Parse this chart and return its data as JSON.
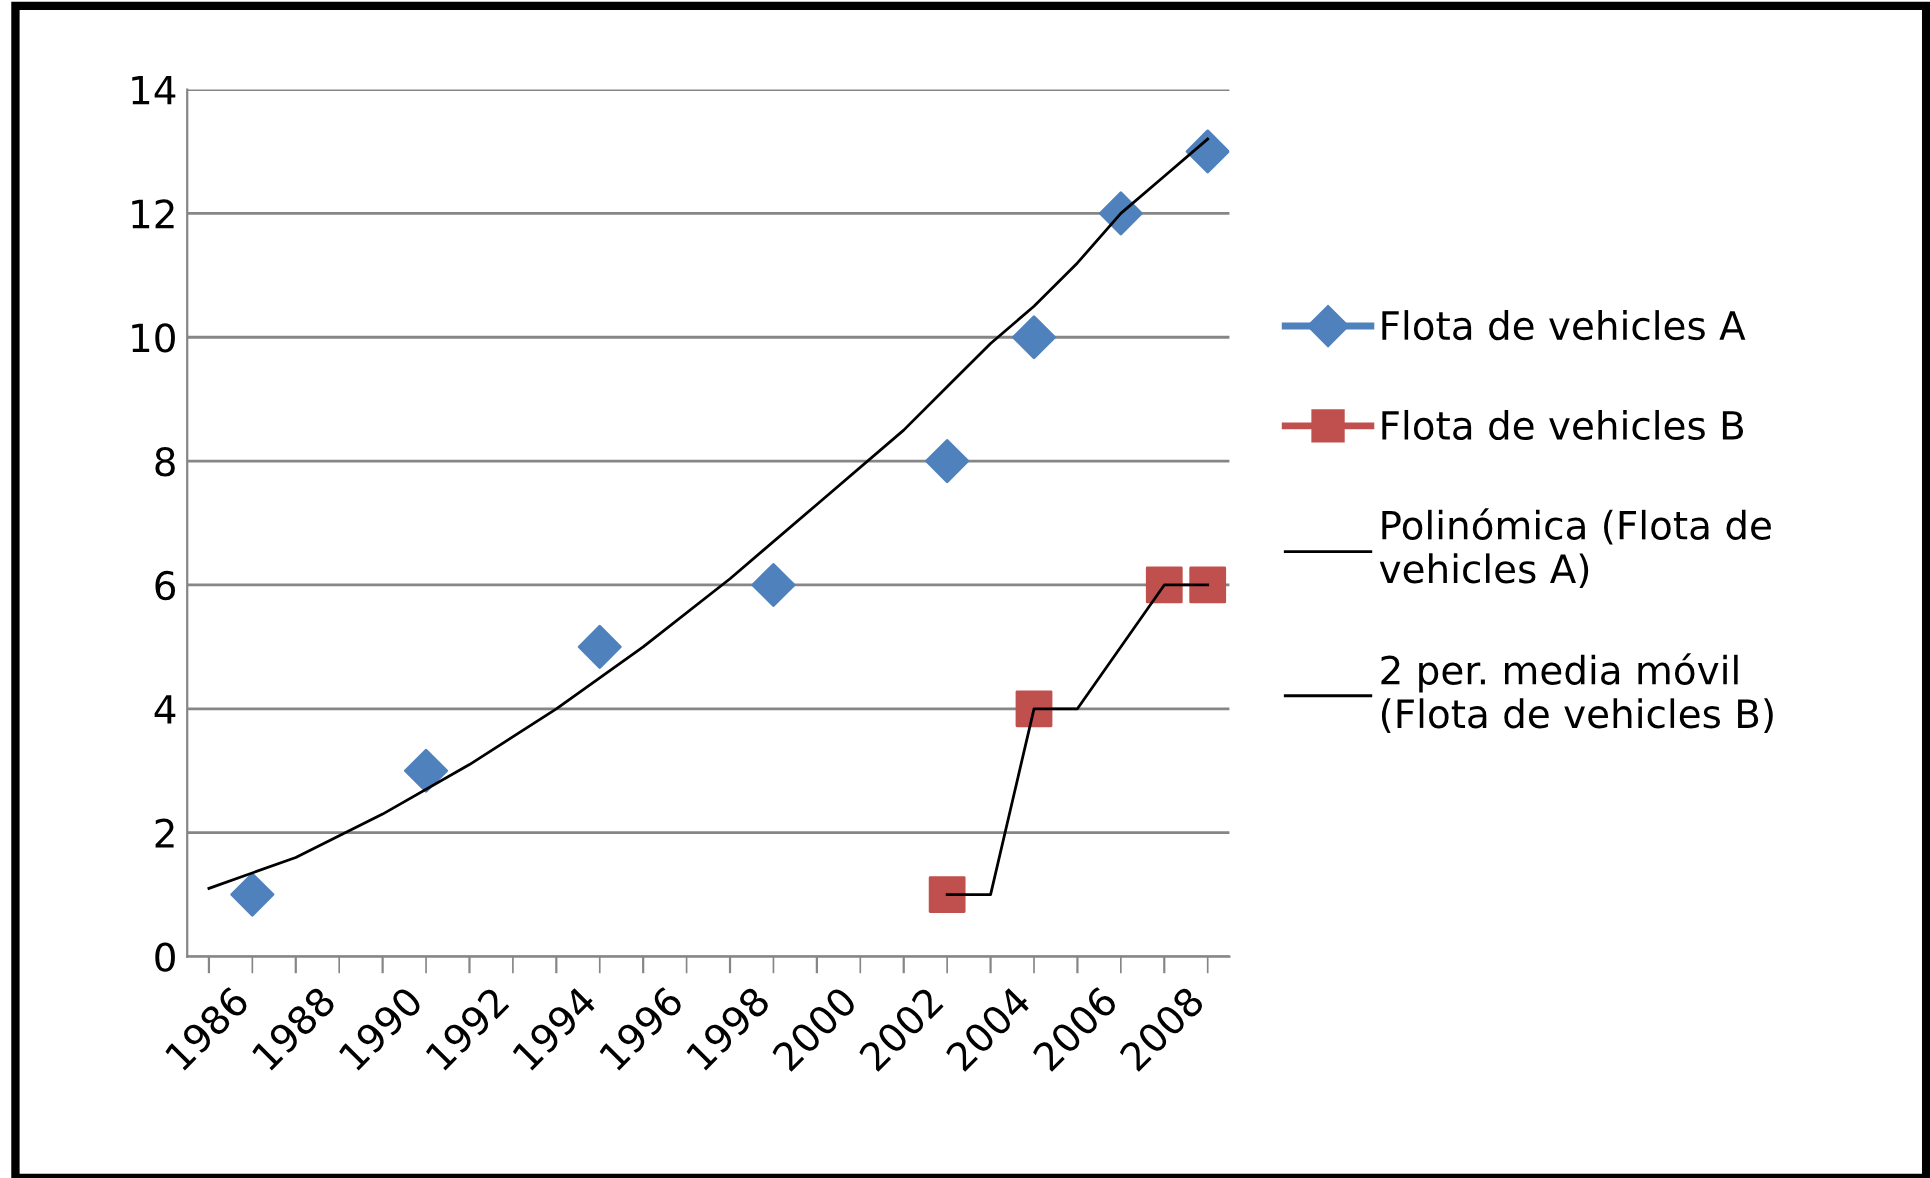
{
  "chart_data": {
    "type": "scatter",
    "xlim": [
      1985.5,
      2009.5
    ],
    "xticks": [
      1986,
      1988,
      1990,
      1992,
      1994,
      1996,
      1998,
      2000,
      2002,
      2004,
      2006,
      2008
    ],
    "ylim": [
      0,
      14
    ],
    "yticks": [
      0,
      2,
      4,
      6,
      8,
      10,
      12,
      14
    ],
    "grid": "y",
    "legend": "right",
    "series": [
      {
        "name": "Flota de vehicles A",
        "type": "scatter",
        "marker": "diamond",
        "color": "#4f81bd",
        "x": [
          1987,
          1991,
          1995,
          1999,
          2003,
          2005,
          2007,
          2009
        ],
        "values": [
          1,
          3,
          5,
          6,
          8,
          10,
          12,
          13
        ]
      },
      {
        "name": "Flota de vehicles B",
        "type": "scatter",
        "marker": "square",
        "color": "#c0504d",
        "x": [
          2003,
          2005,
          2008,
          2009
        ],
        "values": [
          1,
          4,
          6,
          6
        ]
      },
      {
        "name": "Polinómica (Flota de\nvehicles A)",
        "type": "line",
        "marker": "none",
        "color": "#000000",
        "x": [
          1986,
          1988,
          1990,
          1992,
          1994,
          1996,
          1998,
          2000,
          2002,
          2003,
          2004,
          2005,
          2006,
          2007,
          2008,
          2009
        ],
        "values": [
          1.1,
          1.6,
          2.3,
          3.1,
          4.0,
          5.0,
          6.1,
          7.3,
          8.5,
          9.2,
          9.9,
          10.5,
          11.2,
          12.0,
          12.6,
          13.2
        ]
      },
      {
        "name": "2 per. media móvil\n(Flota de vehicles B)",
        "type": "line",
        "marker": "none",
        "color": "#000000",
        "x": [
          2003,
          2004,
          2005,
          2006,
          2008,
          2009
        ],
        "values": [
          1,
          1,
          4,
          4,
          6,
          6
        ]
      }
    ]
  }
}
